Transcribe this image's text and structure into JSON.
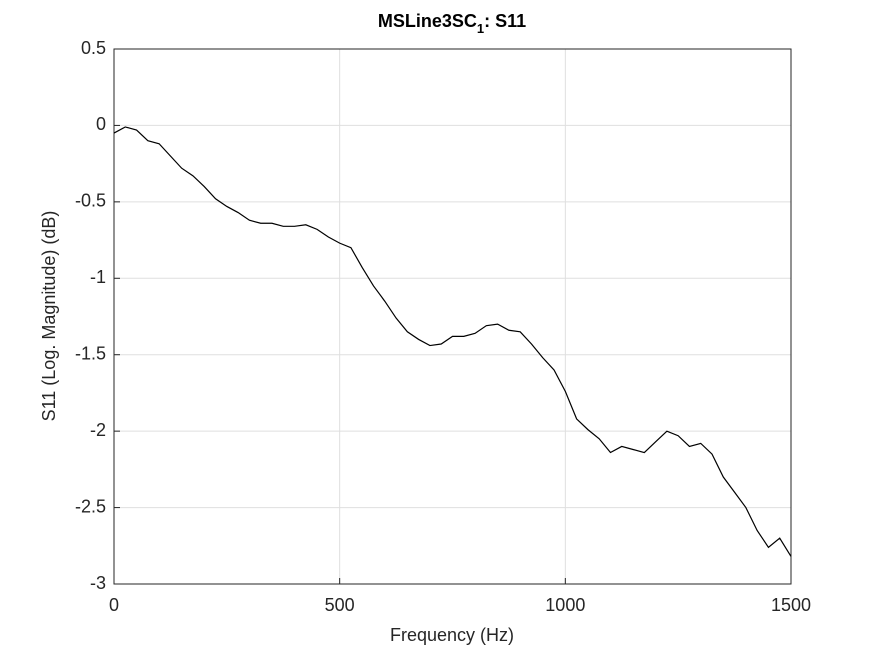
{
  "chart_data": {
    "type": "line",
    "title": {
      "text": "MSLine3SC",
      "subscript": "1",
      "suffix": ": S11"
    },
    "x_label": "Frequency (Hz)",
    "y_label": "S11 (Log. Magnitude) (dB)",
    "x": [
      0,
      25,
      50,
      75,
      100,
      125,
      150,
      175,
      200,
      225,
      250,
      275,
      300,
      325,
      350,
      375,
      400,
      425,
      450,
      475,
      500,
      525,
      550,
      575,
      600,
      625,
      650,
      675,
      700,
      725,
      750,
      775,
      800,
      825,
      850,
      875,
      900,
      925,
      950,
      975,
      1000,
      1025,
      1050,
      1075,
      1100,
      1125,
      1150,
      1175,
      1200,
      1225,
      1250,
      1275,
      1300,
      1325,
      1350,
      1375,
      1400,
      1425,
      1450,
      1475,
      1500
    ],
    "series": [
      {
        "name": "S11",
        "color": "#000000",
        "values": [
          -0.05,
          -0.01,
          -0.03,
          -0.1,
          -0.12,
          -0.2,
          -0.28,
          -0.33,
          -0.4,
          -0.48,
          -0.53,
          -0.57,
          -0.62,
          -0.64,
          -0.64,
          -0.66,
          -0.66,
          -0.65,
          -0.68,
          -0.73,
          -0.77,
          -0.8,
          -0.93,
          -1.05,
          -1.15,
          -1.26,
          -1.35,
          -1.4,
          -1.44,
          -1.43,
          -1.38,
          -1.38,
          -1.36,
          -1.31,
          -1.3,
          -1.34,
          -1.35,
          -1.43,
          -1.52,
          -1.6,
          -1.74,
          -1.92,
          -1.99,
          -2.05,
          -2.14,
          -2.1,
          -2.12,
          -2.14,
          -2.07,
          -2.0,
          -2.03,
          -2.1,
          -2.08,
          -2.15,
          -2.3,
          -2.4,
          -2.5,
          -2.65,
          -2.76,
          -2.7,
          -2.82
        ]
      }
    ],
    "xlim": [
      0,
      1500
    ],
    "xticks": [
      0,
      500,
      1000,
      1500
    ],
    "ylim": [
      -3,
      0.5
    ],
    "yticks": [
      -3,
      -2.5,
      -2,
      -1.5,
      -1,
      -0.5,
      0,
      0.5
    ],
    "grid": true
  }
}
